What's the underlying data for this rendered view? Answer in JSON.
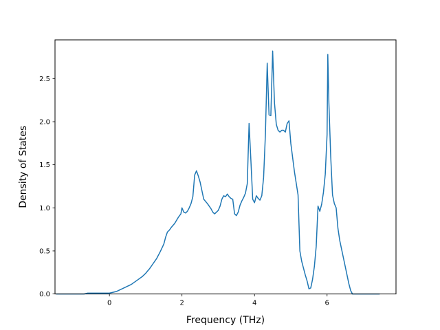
{
  "chart_data": {
    "type": "line",
    "title": "",
    "xlabel": "Frequency (THz)",
    "ylabel": "Density of States",
    "xlim": [
      -1.5,
      7.9
    ],
    "ylim": [
      0.0,
      2.95
    ],
    "grid": false,
    "line_color": "#1f77b4",
    "x_ticks": [
      0,
      2,
      4,
      6
    ],
    "x_tick_labels": [
      "0",
      "2",
      "4",
      "6"
    ],
    "y_ticks": [
      0.0,
      0.5,
      1.0,
      1.5,
      2.0,
      2.5
    ],
    "y_tick_labels": [
      "0.0",
      "0.5",
      "1.0",
      "1.5",
      "2.0",
      "2.5"
    ],
    "series": [
      {
        "x": [
          -1.47,
          -0.7,
          -0.6,
          0.0,
          0.1,
          0.2,
          0.3,
          0.4,
          0.5,
          0.6,
          0.7,
          0.8,
          0.9,
          1.0,
          1.1,
          1.2,
          1.3,
          1.4,
          1.5,
          1.55,
          1.6,
          1.65,
          1.7,
          1.8,
          1.9,
          1.97,
          2.0,
          2.05,
          2.1,
          2.15,
          2.2,
          2.25,
          2.3,
          2.35,
          2.4,
          2.45,
          2.5,
          2.6,
          2.7,
          2.8,
          2.85,
          2.9,
          3.0,
          3.05,
          3.1,
          3.15,
          3.2,
          3.25,
          3.3,
          3.35,
          3.4,
          3.45,
          3.5,
          3.55,
          3.6,
          3.65,
          3.7,
          3.75,
          3.8,
          3.85,
          3.9,
          3.95,
          4.0,
          4.05,
          4.1,
          4.15,
          4.2,
          4.25,
          4.3,
          4.35,
          4.4,
          4.45,
          4.5,
          4.55,
          4.6,
          4.65,
          4.7,
          4.75,
          4.8,
          4.85,
          4.9,
          4.95,
          5.0,
          5.1,
          5.2,
          5.25,
          5.3,
          5.35,
          5.4,
          5.45,
          5.5,
          5.55,
          5.6,
          5.65,
          5.7,
          5.75,
          5.8,
          5.85,
          5.9,
          5.95,
          6.0,
          6.02,
          6.05,
          6.1,
          6.15,
          6.2,
          6.25,
          6.3,
          6.35,
          6.4,
          6.45,
          6.5,
          6.55,
          6.6,
          6.65,
          6.7,
          6.8,
          7.0,
          7.2,
          7.45
        ],
        "y": [
          0.0,
          0.0,
          0.01,
          0.01,
          0.02,
          0.03,
          0.05,
          0.07,
          0.09,
          0.11,
          0.14,
          0.17,
          0.2,
          0.24,
          0.29,
          0.35,
          0.41,
          0.49,
          0.58,
          0.66,
          0.72,
          0.74,
          0.77,
          0.82,
          0.89,
          0.93,
          1.0,
          0.95,
          0.94,
          0.96,
          1.0,
          1.05,
          1.13,
          1.38,
          1.43,
          1.37,
          1.3,
          1.1,
          1.05,
          0.99,
          0.95,
          0.93,
          0.97,
          1.02,
          1.1,
          1.14,
          1.13,
          1.16,
          1.13,
          1.11,
          1.1,
          0.93,
          0.91,
          0.95,
          1.03,
          1.08,
          1.12,
          1.17,
          1.28,
          1.98,
          1.55,
          1.1,
          1.06,
          1.14,
          1.11,
          1.09,
          1.14,
          1.35,
          1.85,
          2.68,
          2.08,
          2.07,
          2.82,
          2.22,
          1.97,
          1.9,
          1.88,
          1.9,
          1.9,
          1.88,
          1.98,
          2.01,
          1.75,
          1.42,
          1.15,
          0.5,
          0.38,
          0.3,
          0.22,
          0.15,
          0.06,
          0.07,
          0.17,
          0.32,
          0.55,
          1.02,
          0.96,
          1.04,
          1.18,
          1.39,
          1.85,
          2.78,
          2.22,
          1.6,
          1.15,
          1.05,
          1.0,
          0.76,
          0.62,
          0.52,
          0.42,
          0.32,
          0.22,
          0.12,
          0.04,
          0.0,
          0.0,
          0.0,
          0.0,
          0.0
        ]
      }
    ]
  }
}
